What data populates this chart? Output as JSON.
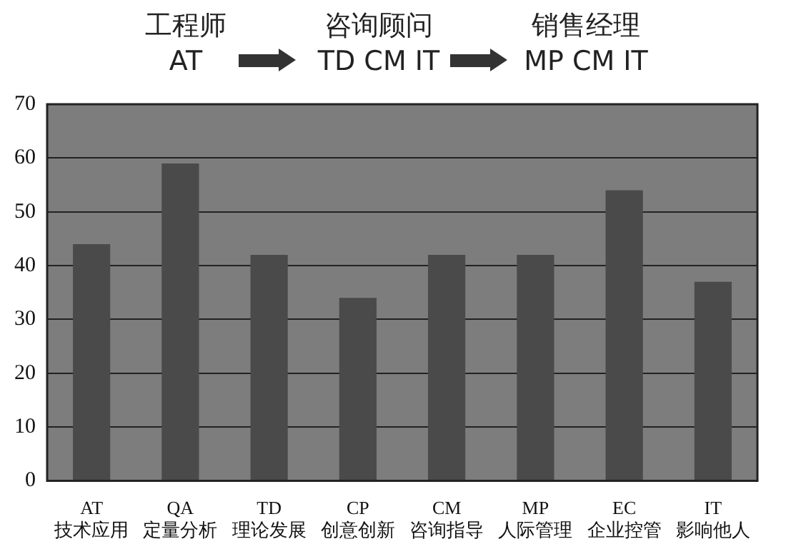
{
  "chart_data": {
    "type": "bar",
    "annotations": [
      "工程师\nAT",
      "咨询顾问\nTD CM IT",
      "销售经理\nMP CM IT"
    ],
    "categories": [
      "AT\n技术应用",
      "QA\n定量分析",
      "TD\n理论发展",
      "CP\n创意创新",
      "CM\n咨询指导",
      "MP\n人际管理",
      "EC\n企业控管",
      "IT\n影响他人"
    ],
    "values": [
      44,
      59,
      42,
      34,
      42,
      42,
      54,
      37
    ],
    "color": "#4a4a4a",
    "ylim": [
      0,
      70
    ],
    "yticks": [
      0,
      10,
      20,
      30,
      40,
      50,
      60,
      70
    ],
    "grid": "y"
  }
}
